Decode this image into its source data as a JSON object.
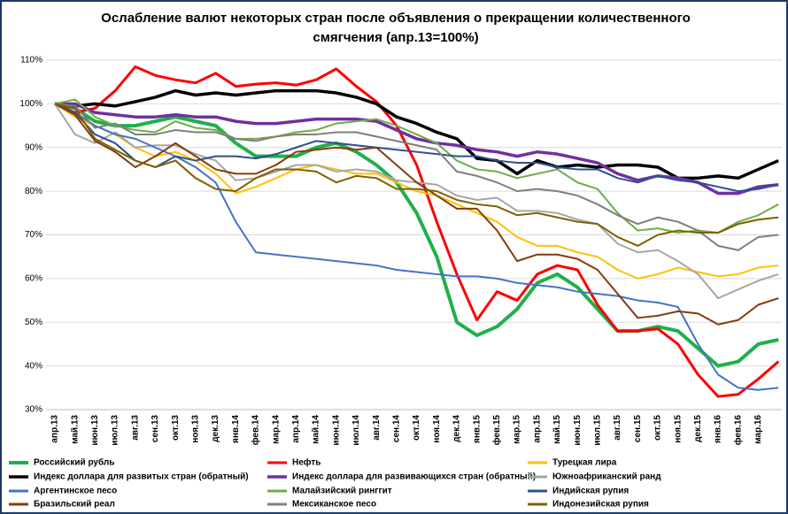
{
  "chart_data": {
    "type": "line",
    "title": "Ослабление валют некоторых стран после объявления о прекращении количественного смягчения  (апр.13=100%)",
    "categories": [
      "апр.13",
      "май.13",
      "июн.13",
      "июл.13",
      "авг.13",
      "сен.13",
      "окт.13",
      "ноя.13",
      "дек.13",
      "янв.14",
      "фев.14",
      "мар.14",
      "апр.14",
      "май.14",
      "июн.14",
      "июл.14",
      "авг.14",
      "сен.14",
      "окт.14",
      "ноя.14",
      "дек.14",
      "янв.15",
      "фев.15",
      "мар.15",
      "апр.15",
      "май.15",
      "июн.15",
      "июл.15",
      "авг.15",
      "сен.15",
      "окт.15",
      "ноя.15",
      "дек.15",
      "янв.16",
      "фев.16",
      "мар.16",
      null
    ],
    "ylim": [
      30,
      110
    ],
    "yticks": [
      {
        "value": 30,
        "label": "30%"
      },
      {
        "value": 40,
        "label": "40%"
      },
      {
        "value": 50,
        "label": "50%"
      },
      {
        "value": 60,
        "label": "60%"
      },
      {
        "value": 70,
        "label": "70%"
      },
      {
        "value": 80,
        "label": "80%"
      },
      {
        "value": 90,
        "label": "90%"
      },
      {
        "value": 100,
        "label": "100%"
      },
      {
        "value": 110,
        "label": "110%"
      }
    ],
    "grid": true,
    "legend": "bottom",
    "series": [
      {
        "name": "Российский рубль",
        "color": "#1fb04a",
        "line_width": 4,
        "values": [
          100,
          99,
          96,
          95,
          95,
          96,
          97,
          96,
          95,
          91,
          88,
          88,
          88,
          90,
          91,
          89,
          86,
          82,
          75,
          65,
          50,
          47,
          49,
          53,
          59,
          61,
          58,
          53,
          48,
          48,
          49,
          48,
          44,
          40,
          41,
          45,
          46
        ]
      },
      {
        "name": "Нефть",
        "color": "#ff0000",
        "line_width": 3,
        "values": [
          100,
          98,
          99,
          103,
          108.5,
          106.5,
          105.5,
          104.8,
          107,
          104,
          104.5,
          104.8,
          104.3,
          105.5,
          108,
          104,
          100.5,
          95,
          86,
          73,
          61,
          50.5,
          57,
          55,
          61,
          63,
          62,
          54,
          48,
          48,
          48.5,
          45,
          38,
          33,
          33.5,
          37,
          41
        ]
      },
      {
        "name": "Турецкая лира",
        "color": "#ffc000",
        "line_width": 2,
        "values": [
          100,
          97,
          95,
          93,
          90,
          88,
          89,
          87,
          84,
          79.5,
          81,
          83,
          85,
          86,
          85,
          84,
          84,
          82,
          80,
          79,
          77,
          75,
          73,
          69.5,
          67.5,
          67.5,
          66,
          65,
          62,
          60,
          61,
          62.5,
          61.5,
          60.5,
          61,
          62.5,
          63
        ]
      },
      {
        "name": "Индекс доллара для развитых стран (обратный)",
        "color": "#000000",
        "line_width": 3.5,
        "values": [
          100,
          99.5,
          100,
          99.5,
          100.5,
          101.5,
          103,
          102,
          102.5,
          102,
          102.5,
          103,
          103,
          103,
          102.5,
          101.5,
          100,
          97,
          95.5,
          93.5,
          92,
          87.5,
          87,
          84,
          87,
          85.5,
          86,
          85.5,
          86,
          86,
          85.5,
          83,
          83,
          83.5,
          83,
          85,
          87
        ]
      },
      {
        "name": "Индекс доллара для развивающихся стран (обратный)",
        "color": "#7030a0",
        "line_width": 3.5,
        "values": [
          100,
          100,
          98,
          97.5,
          97,
          97,
          97.5,
          97,
          97,
          96,
          95.5,
          95.5,
          96,
          96.5,
          96.5,
          96.5,
          96,
          94,
          92,
          91,
          90.5,
          89.5,
          89,
          88,
          89,
          88.5,
          87.5,
          86.5,
          84,
          82.5,
          83.5,
          83,
          82,
          79.5,
          79.5,
          81,
          81.5
        ]
      },
      {
        "name": "Южноафриканский ранд",
        "color": "#a6a6a6",
        "line_width": 2,
        "values": [
          100,
          93,
          91,
          93.5,
          90,
          90.5,
          90.5,
          88.5,
          87,
          82.5,
          83,
          84.5,
          86,
          86,
          84.5,
          85,
          84.5,
          82.5,
          82,
          81.5,
          79,
          78,
          78.5,
          75.5,
          75.5,
          75,
          73.5,
          72.5,
          68,
          66,
          66.5,
          64,
          61,
          55.5,
          57.5,
          59.5,
          61
        ]
      },
      {
        "name": "Аргентинское песо",
        "color": "#4472c4",
        "line_width": 2,
        "values": [
          100,
          98,
          95,
          93,
          92,
          90,
          88,
          85.5,
          82,
          73,
          66,
          65.5,
          65,
          64.5,
          64,
          63.5,
          63,
          62,
          61.5,
          61,
          60.5,
          60.5,
          60,
          59,
          58.5,
          58,
          57,
          56.5,
          56,
          55,
          54.5,
          53.5,
          45,
          38,
          35,
          34.5,
          35
        ]
      },
      {
        "name": "Малайзийский ринггит",
        "color": "#70ad47",
        "line_width": 2,
        "values": [
          100,
          101,
          97,
          95,
          94,
          93.5,
          96,
          94.5,
          94,
          92,
          92,
          92.5,
          93.5,
          94,
          95.5,
          96,
          96.5,
          95,
          93,
          91,
          87,
          85,
          84.5,
          83,
          84,
          85,
          82,
          80.5,
          75,
          71,
          71.5,
          70.5,
          71,
          70.5,
          73,
          74.5,
          77
        ]
      },
      {
        "name": "Индийская рупия",
        "color": "#2f4f8f",
        "line_width": 2,
        "values": [
          100,
          98,
          93,
          91,
          87,
          85.5,
          88,
          87,
          88,
          88,
          87.5,
          88.5,
          90,
          91.5,
          91,
          90.5,
          90,
          89.5,
          89,
          88.5,
          88,
          88,
          87,
          86.5,
          86.5,
          85.5,
          85,
          85,
          83,
          82,
          83.5,
          82.5,
          82,
          81,
          80,
          80.5,
          81.5
        ]
      },
      {
        "name": "Бразильский реал",
        "color": "#843c0c",
        "line_width": 2,
        "values": [
          100,
          97.5,
          91.5,
          89,
          85.5,
          88,
          91,
          88,
          85,
          84,
          84,
          86,
          89,
          89.5,
          90,
          89.5,
          90,
          86,
          82,
          79,
          76,
          76,
          71,
          64,
          65.5,
          65.5,
          64.5,
          62,
          56.5,
          51,
          51.5,
          52.5,
          52,
          49.5,
          50.5,
          54,
          55.5
        ]
      },
      {
        "name": "Мексиканское песо",
        "color": "#7f7f7f",
        "line_width": 2,
        "values": [
          100,
          99.5,
          94.5,
          95.5,
          93,
          93,
          94,
          93.5,
          93.5,
          92,
          91.5,
          92.5,
          93,
          93,
          93.5,
          93.5,
          92.5,
          91.5,
          90.5,
          89.5,
          84.5,
          83.5,
          82,
          80,
          80.5,
          80,
          79,
          77,
          74.5,
          72.5,
          74,
          73,
          71,
          67.5,
          66.5,
          69.5,
          70
        ]
      },
      {
        "name": "Индонезийская рупия",
        "color": "#7f6000",
        "line_width": 2,
        "values": [
          100,
          99,
          92,
          89.5,
          87,
          85.5,
          87,
          83,
          80.5,
          80,
          83,
          85,
          85,
          84.5,
          82,
          83.5,
          83,
          80.5,
          80.5,
          80,
          78,
          77,
          76.5,
          74.5,
          75,
          74,
          73,
          72.5,
          69.5,
          67.5,
          70,
          71,
          70.5,
          70.5,
          72.5,
          73.5,
          74
        ]
      }
    ]
  }
}
